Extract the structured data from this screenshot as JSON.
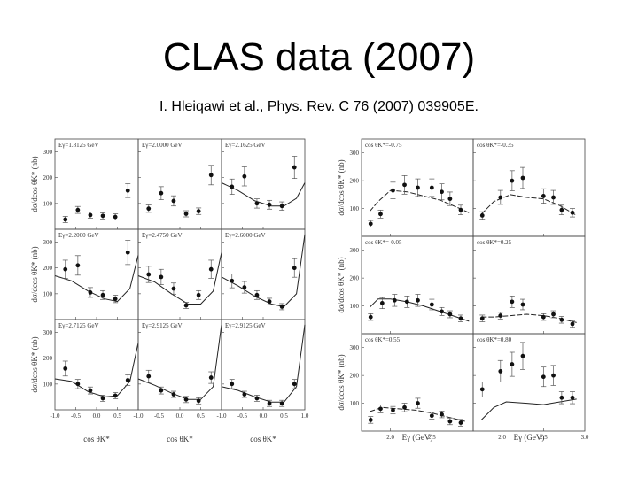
{
  "slide": {
    "title": "CLAS data (2007)",
    "subtitle": "I. Hleiqawi et al., Phys. Rev. C 76 (2007) 039905E."
  },
  "chart_data": [
    {
      "type": "scatter",
      "ylabel": "dσ/dcos θK* (nb)",
      "xlabel": "cos θK*",
      "xlim": [
        -1.0,
        1.0
      ],
      "ylim": [
        0,
        350
      ],
      "xticks": [
        "-1.0",
        "-0.5",
        "0.0",
        "0.5",
        "1.0"
      ],
      "yticks": [
        "100",
        "200",
        "300"
      ],
      "panels": [
        {
          "label": "Eγ=1.8125 GeV",
          "x": [
            -0.75,
            -0.45,
            -0.15,
            0.15,
            0.45,
            0.75
          ],
          "y": [
            38,
            75,
            55,
            52,
            48,
            150
          ],
          "curve": [],
          "curve_style": "none"
        },
        {
          "label": "Eγ=2.0000 GeV",
          "x": [
            -0.75,
            -0.45,
            -0.15,
            0.15,
            0.45,
            0.75
          ],
          "y": [
            80,
            140,
            110,
            60,
            70,
            210
          ],
          "curve": [],
          "curve_style": "none"
        },
        {
          "label": "Eγ=2.1625 GeV",
          "x": [
            -0.75,
            -0.45,
            -0.15,
            0.15,
            0.45,
            0.75
          ],
          "y": [
            165,
            205,
            100,
            95,
            90,
            240
          ],
          "curve": [
            [
              -1.0,
              180
            ],
            [
              -0.6,
              150
            ],
            [
              -0.2,
              110
            ],
            [
              0.2,
              90
            ],
            [
              0.5,
              90
            ],
            [
              0.8,
              120
            ],
            [
              1.0,
              180
            ]
          ],
          "curve_style": "solid"
        },
        {
          "label": "Eγ=2.2000 GeV",
          "x": [
            -0.75,
            -0.45,
            -0.15,
            0.15,
            0.45,
            0.75
          ],
          "y": [
            195,
            210,
            105,
            95,
            80,
            260
          ],
          "curve": [
            [
              -1.0,
              170
            ],
            [
              -0.6,
              150
            ],
            [
              -0.2,
              110
            ],
            [
              0.2,
              80
            ],
            [
              0.5,
              70
            ],
            [
              0.8,
              120
            ],
            [
              1.0,
              250
            ]
          ],
          "curve_style": "solid"
        },
        {
          "label": "Eγ=2.4750 GeV",
          "x": [
            -0.75,
            -0.45,
            -0.15,
            0.15,
            0.45,
            0.75
          ],
          "y": [
            175,
            165,
            120,
            55,
            95,
            195
          ],
          "curve": [
            [
              -1.0,
              170
            ],
            [
              -0.6,
              145
            ],
            [
              -0.2,
              100
            ],
            [
              0.2,
              60
            ],
            [
              0.5,
              60
            ],
            [
              0.8,
              110
            ],
            [
              1.0,
              260
            ]
          ],
          "curve_style": "solid"
        },
        {
          "label": "Eγ=2.6000 GeV",
          "x": [
            -0.75,
            -0.45,
            -0.15,
            0.15,
            0.45,
            0.75
          ],
          "y": [
            150,
            125,
            95,
            70,
            50,
            200
          ],
          "curve": [
            [
              -1.0,
              165
            ],
            [
              -0.6,
              130
            ],
            [
              -0.2,
              90
            ],
            [
              0.2,
              60
            ],
            [
              0.5,
              50
            ],
            [
              0.8,
              100
            ],
            [
              1.0,
              330
            ]
          ],
          "curve_style": "solid"
        },
        {
          "label": "Eγ=2.7125 GeV",
          "x": [
            -0.75,
            -0.45,
            -0.15,
            0.15,
            0.45,
            0.75
          ],
          "y": [
            160,
            100,
            75,
            45,
            55,
            115
          ],
          "curve": [
            [
              -1.0,
              120
            ],
            [
              -0.6,
              110
            ],
            [
              -0.2,
              70
            ],
            [
              0.2,
              50
            ],
            [
              0.5,
              55
            ],
            [
              0.8,
              110
            ],
            [
              1.0,
              260
            ]
          ],
          "curve_style": "solid"
        },
        {
          "label": "Eγ=2.9125 GeV",
          "x": [
            -0.75,
            -0.45,
            -0.15,
            0.15,
            0.45,
            0.75
          ],
          "y": [
            130,
            75,
            60,
            40,
            35,
            125
          ],
          "curve": [
            [
              -1.0,
              120
            ],
            [
              -0.6,
              95
            ],
            [
              -0.2,
              65
            ],
            [
              0.2,
              40
            ],
            [
              0.5,
              40
            ],
            [
              0.8,
              90
            ],
            [
              1.0,
              330
            ]
          ],
          "curve_style": "solid"
        },
        {
          "label": "Eγ=2.9125 GeV",
          "x": [
            -0.75,
            -0.45,
            -0.15,
            0.15,
            0.45,
            0.75
          ],
          "y": [
            100,
            60,
            45,
            25,
            25,
            100
          ],
          "curve": [
            [
              -1.0,
              90
            ],
            [
              -0.6,
              75
            ],
            [
              -0.2,
              50
            ],
            [
              0.2,
              30
            ],
            [
              0.5,
              30
            ],
            [
              0.8,
              90
            ],
            [
              1.0,
              330
            ]
          ],
          "curve_style": "solid"
        }
      ]
    },
    {
      "type": "scatter",
      "ylabel": "dσ/dcos θK* (nb)",
      "xlabel": "Eγ (GeV)",
      "xlim": [
        1.65,
        3.0
      ],
      "ylim": [
        0,
        350
      ],
      "xticks": [
        "2.0",
        "2.5",
        "3.0"
      ],
      "yticks": [
        "100",
        "200",
        "300"
      ],
      "panels": [
        {
          "label": "cos θK*=-0.75",
          "x": [
            1.76,
            1.88,
            2.03,
            2.17,
            2.33,
            2.5,
            2.62,
            2.72,
            2.85
          ],
          "y": [
            45,
            80,
            165,
            185,
            175,
            175,
            160,
            135,
            95
          ],
          "curve": [
            [
              1.75,
              90
            ],
            [
              1.85,
              125
            ],
            [
              2.0,
              165
            ],
            [
              2.2,
              160
            ],
            [
              2.4,
              145
            ],
            [
              2.6,
              130
            ],
            [
              2.8,
              105
            ],
            [
              2.95,
              85
            ]
          ],
          "curve_style": "dashed"
        },
        {
          "label": "cos θK*=-0.35",
          "x": [
            1.76,
            1.98,
            2.12,
            2.25,
            2.5,
            2.62,
            2.72,
            2.85
          ],
          "y": [
            75,
            140,
            200,
            210,
            145,
            140,
            95,
            85
          ],
          "curve": [
            [
              1.75,
              80
            ],
            [
              1.9,
              125
            ],
            [
              2.1,
              150
            ],
            [
              2.3,
              140
            ],
            [
              2.5,
              135
            ],
            [
              2.7,
              110
            ],
            [
              2.9,
              75
            ]
          ],
          "curve_style": "dashed"
        },
        {
          "label": "cos θK*=-0.05",
          "x": [
            1.76,
            1.9,
            2.05,
            2.2,
            2.33,
            2.5,
            2.62,
            2.72,
            2.85
          ],
          "y": [
            60,
            110,
            120,
            115,
            120,
            105,
            80,
            70,
            55
          ],
          "curve": [
            [
              1.75,
              95
            ],
            [
              1.85,
              125
            ],
            [
              2.0,
              125
            ],
            [
              2.2,
              115
            ],
            [
              2.4,
              100
            ],
            [
              2.6,
              80
            ],
            [
              2.8,
              60
            ],
            [
              2.95,
              45
            ]
          ],
          "curve_style": "solid"
        },
        {
          "label": "cos θK*=0.25",
          "x": [
            1.76,
            1.98,
            2.12,
            2.25,
            2.5,
            2.62,
            2.72,
            2.85
          ],
          "y": [
            55,
            65,
            115,
            105,
            60,
            70,
            50,
            35
          ],
          "curve": [
            [
              1.75,
              60
            ],
            [
              1.9,
              60
            ],
            [
              2.1,
              65
            ],
            [
              2.3,
              70
            ],
            [
              2.5,
              65
            ],
            [
              2.7,
              55
            ],
            [
              2.9,
              40
            ]
          ],
          "curve_style": "dashed"
        },
        {
          "label": "cos θK*=0.55",
          "x": [
            1.76,
            1.88,
            2.03,
            2.17,
            2.33,
            2.5,
            2.62,
            2.72,
            2.85
          ],
          "y": [
            40,
            80,
            75,
            85,
            100,
            55,
            60,
            35,
            30
          ],
          "curve": [
            [
              1.75,
              70
            ],
            [
              1.9,
              85
            ],
            [
              2.1,
              80
            ],
            [
              2.3,
              75
            ],
            [
              2.5,
              65
            ],
            [
              2.7,
              50
            ],
            [
              2.9,
              35
            ]
          ],
          "curve_style": "dashed"
        },
        {
          "label": "cos θK*=0.80",
          "x": [
            1.76,
            1.98,
            2.12,
            2.25,
            2.5,
            2.62,
            2.72,
            2.85
          ],
          "y": [
            150,
            215,
            240,
            270,
            195,
            200,
            120,
            120
          ],
          "curve": [
            [
              1.75,
              40
            ],
            [
              1.9,
              85
            ],
            [
              2.05,
              105
            ],
            [
              2.3,
              100
            ],
            [
              2.5,
              95
            ],
            [
              2.7,
              105
            ],
            [
              2.9,
              115
            ]
          ],
          "curve_style": "solid"
        }
      ]
    }
  ]
}
